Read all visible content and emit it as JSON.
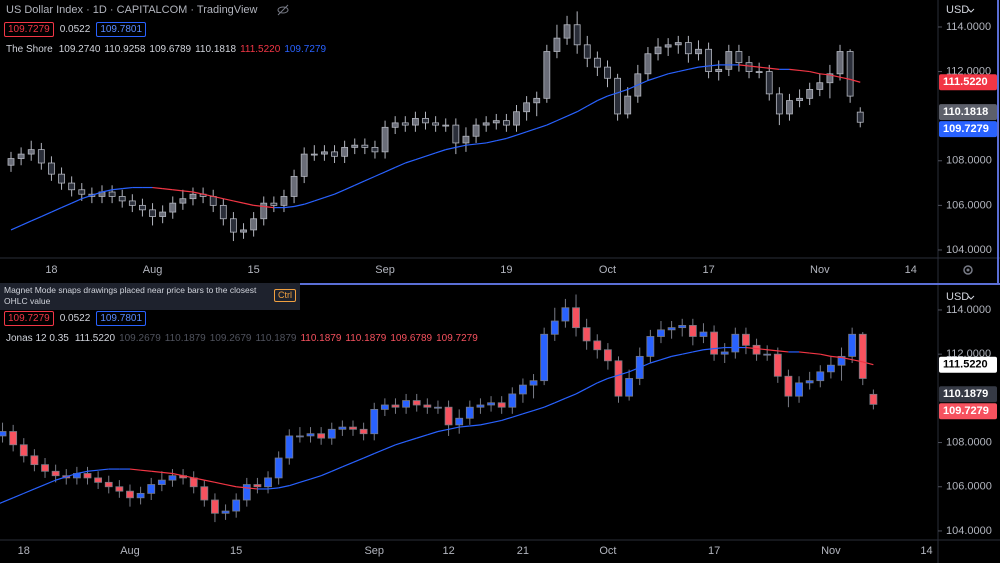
{
  "ui": {
    "symbol_title": "US Dollar Index · 1D · CAPITALCOM · TradingView",
    "quote_top": {
      "bid": "109.7279",
      "spread": "0.0522",
      "ask": "109.7801"
    },
    "legend_top": [
      {
        "text": "109.2740",
        "color": "#d1d4dc"
      },
      {
        "text": "110.9258",
        "color": "#d1d4dc"
      },
      {
        "text": "109.6789",
        "color": "#d1d4dc"
      },
      {
        "text": "110.1818",
        "color": "#d1d4dc"
      },
      {
        "text": "111.5220",
        "color": "#f23645"
      },
      {
        "text": "109.7279",
        "color": "#2962ff"
      }
    ],
    "tooltip": {
      "text": "Magnet Mode snaps drawings placed near price bars to the closest OHLC value",
      "key": "Ctrl"
    },
    "quote_bottom": {
      "bid": "109.7279",
      "spread": "0.0522",
      "ask": "109.7801"
    },
    "legend_bottom": [
      {
        "text": "111.5220",
        "color": "#d1d4dc"
      },
      {
        "text": "109.2679",
        "color": "#50535e"
      },
      {
        "text": "110.1879",
        "color": "#50535e"
      },
      {
        "text": "109.2679",
        "color": "#50535e"
      },
      {
        "text": "110.1879",
        "color": "#50535e"
      },
      {
        "text": "110.1879",
        "color": "#f7525f"
      },
      {
        "text": "110.1879",
        "color": "#f7525f"
      },
      {
        "text": "109.6789",
        "color": "#f7525f"
      },
      {
        "text": "109.7279",
        "color": "#f7525f"
      }
    ],
    "currency_top": "USD",
    "currency_bottom": "USD"
  },
  "chart_data": [
    {
      "type": "candlestick",
      "categories": [
        null,
        null,
        null,
        null,
        "18",
        null,
        null,
        null,
        null,
        null,
        null,
        null,
        null,
        null,
        "Aug",
        null,
        null,
        null,
        null,
        null,
        null,
        null,
        null,
        null,
        "15",
        null,
        null,
        null,
        null,
        null,
        null,
        null,
        null,
        null,
        null,
        null,
        null,
        "Sep",
        null,
        null,
        null,
        null,
        null,
        null,
        null,
        null,
        null,
        null,
        null,
        "19",
        null,
        null,
        null,
        null,
        null,
        null,
        null,
        null,
        null,
        "Oct",
        null,
        null,
        null,
        null,
        null,
        null,
        null,
        null,
        null,
        "17",
        null,
        null,
        null,
        null,
        null,
        null,
        null,
        null,
        null,
        null,
        "Nov",
        null,
        null,
        null,
        null,
        null,
        null,
        null,
        null,
        "14"
      ],
      "open": [
        107.8,
        108.1,
        108.3,
        108.5,
        107.9,
        107.4,
        107.0,
        106.7,
        106.5,
        106.4,
        106.6,
        106.4,
        106.2,
        106.0,
        105.8,
        105.5,
        105.7,
        106.1,
        106.3,
        106.5,
        106.4,
        106.0,
        105.4,
        104.8,
        104.9,
        105.4,
        106.1,
        106.0,
        106.4,
        107.3,
        108.3,
        108.3,
        108.4,
        108.2,
        108.6,
        108.7,
        108.6,
        108.4,
        109.5,
        109.7,
        109.6,
        109.9,
        109.7,
        109.6,
        109.6,
        108.8,
        109.1,
        109.6,
        109.7,
        109.8,
        109.6,
        110.2,
        110.6,
        110.8,
        112.9,
        113.5,
        114.1,
        113.2,
        112.6,
        112.2,
        111.7,
        110.1,
        110.9,
        111.9,
        112.8,
        113.1,
        113.2,
        113.3,
        112.8,
        113.0,
        112.0,
        112.1,
        112.9,
        112.4,
        112.0,
        112.0,
        111.0,
        110.1,
        110.7,
        110.8,
        111.2,
        111.5,
        111.9,
        112.9,
        110.1818,
        null,
        null,
        null,
        null,
        null
      ],
      "high": [
        108.4,
        108.6,
        108.9,
        108.8,
        108.2,
        107.7,
        107.3,
        107.0,
        106.8,
        106.9,
        106.9,
        106.7,
        106.5,
        106.3,
        106.1,
        106.0,
        106.4,
        106.7,
        106.8,
        106.8,
        106.7,
        106.3,
        105.7,
        105.2,
        105.7,
        106.4,
        106.4,
        106.7,
        107.6,
        108.6,
        108.7,
        108.7,
        108.7,
        108.9,
        109.0,
        109.0,
        108.9,
        109.8,
        110.0,
        110.0,
        110.2,
        110.2,
        110.0,
        109.9,
        109.9,
        109.5,
        109.9,
        110.0,
        110.1,
        110.1,
        110.5,
        110.9,
        111.1,
        113.2,
        114.1,
        114.5,
        114.7,
        113.6,
        112.9,
        112.5,
        111.9,
        111.3,
        112.3,
        113.1,
        113.5,
        113.5,
        113.6,
        113.6,
        113.4,
        113.3,
        112.5,
        113.2,
        113.2,
        112.7,
        112.4,
        112.3,
        111.3,
        111.0,
        111.2,
        111.5,
        111.9,
        112.3,
        113.2,
        113.0,
        110.4,
        null,
        null,
        null,
        null,
        null
      ],
      "low": [
        107.5,
        107.8,
        108.0,
        107.6,
        107.1,
        106.7,
        106.4,
        106.2,
        106.1,
        106.1,
        106.1,
        105.9,
        105.7,
        105.5,
        105.1,
        105.2,
        105.4,
        105.8,
        106.0,
        106.1,
        105.7,
        105.1,
        104.4,
        104.5,
        104.6,
        105.1,
        105.7,
        105.7,
        106.1,
        107.0,
        108.0,
        108.0,
        107.9,
        107.9,
        108.3,
        108.3,
        108.1,
        108.1,
        109.2,
        109.3,
        109.3,
        109.4,
        109.3,
        109.3,
        108.3,
        108.4,
        108.8,
        109.3,
        109.4,
        109.3,
        109.3,
        109.8,
        110.0,
        110.6,
        112.6,
        113.2,
        112.8,
        112.2,
        111.8,
        111.3,
        109.8,
        109.9,
        110.6,
        111.6,
        112.5,
        112.7,
        112.8,
        112.4,
        112.5,
        111.7,
        111.6,
        111.8,
        112.0,
        111.7,
        111.7,
        110.7,
        109.6,
        109.8,
        110.4,
        110.5,
        110.9,
        110.8,
        111.6,
        110.6,
        109.5,
        null,
        null,
        null,
        null,
        null
      ],
      "close": [
        108.1,
        108.3,
        108.5,
        107.9,
        107.4,
        107.0,
        106.7,
        106.5,
        106.4,
        106.6,
        106.4,
        106.2,
        106.0,
        105.8,
        105.5,
        105.7,
        106.1,
        106.3,
        106.5,
        106.4,
        106.0,
        105.4,
        104.8,
        104.9,
        105.4,
        106.1,
        106.0,
        106.4,
        107.3,
        108.3,
        108.3,
        108.4,
        108.2,
        108.6,
        108.7,
        108.6,
        108.4,
        109.5,
        109.7,
        109.6,
        109.9,
        109.7,
        109.6,
        109.6,
        108.8,
        109.1,
        109.6,
        109.7,
        109.8,
        109.6,
        110.2,
        110.6,
        110.8,
        112.9,
        113.5,
        114.1,
        113.2,
        112.6,
        112.2,
        111.7,
        110.1,
        110.9,
        111.9,
        112.8,
        113.1,
        113.2,
        113.3,
        112.8,
        113.0,
        112.0,
        112.1,
        112.9,
        112.4,
        112.0,
        112.0,
        111.0,
        110.1,
        110.7,
        110.8,
        111.2,
        111.5,
        111.9,
        112.9,
        110.9,
        109.7279,
        null,
        null,
        null,
        null,
        null
      ],
      "series": [
        {
          "name": "The Shore",
          "color": "#2962ff",
          "down_color": "#f23645",
          "values": [
            104.9,
            105.1,
            105.3,
            105.5,
            105.7,
            105.9,
            106.1,
            106.3,
            106.45,
            106.6,
            106.7,
            106.75,
            106.8,
            106.8,
            106.8,
            106.75,
            106.7,
            106.65,
            106.6,
            106.5,
            106.4,
            106.3,
            106.2,
            106.1,
            106.0,
            105.95,
            105.9,
            105.9,
            105.95,
            106.05,
            106.2,
            106.35,
            106.5,
            106.7,
            106.9,
            107.1,
            107.3,
            107.5,
            107.7,
            107.9,
            108.05,
            108.2,
            108.35,
            108.5,
            108.6,
            108.7,
            108.75,
            108.8,
            108.9,
            109.0,
            109.15,
            109.3,
            109.45,
            109.6,
            109.8,
            110.0,
            110.2,
            110.45,
            110.7,
            110.9,
            111.05,
            111.2,
            111.4,
            111.6,
            111.75,
            111.9,
            112.0,
            112.1,
            112.2,
            112.25,
            112.3,
            112.3,
            112.3,
            112.25,
            112.2,
            112.15,
            112.1,
            112.1,
            112.05,
            112.0,
            111.9,
            111.85,
            111.75,
            111.65,
            111.522,
            null,
            null,
            null,
            null,
            null
          ]
        }
      ],
      "up_color": "#6a6d78",
      "down_color": "#2a2e39",
      "border_color": "#b2b5be",
      "ylim": [
        103.64,
        115.21
      ],
      "yticks": [
        {
          "value": 114,
          "label": "114.0000"
        },
        {
          "value": 112,
          "label": "112.0000"
        },
        {
          "value": 108,
          "label": "108.0000"
        },
        {
          "value": 106,
          "label": "106.0000"
        },
        {
          "value": 104,
          "label": "104.0000"
        }
      ],
      "price_labels": [
        {
          "value": 111.522,
          "label": "111.5220",
          "color": "#f23645",
          "text_color": "#ffffff"
        },
        {
          "value": 110.1818,
          "label": "110.1818",
          "color": "#5d606b",
          "text_color": "#ffffff"
        },
        {
          "value": 109.7279,
          "label": "109.7279",
          "color": "#2962ff",
          "text_color": "#ffffff"
        }
      ],
      "grid": false
    },
    {
      "type": "candlestick",
      "categories": [
        null,
        null,
        null,
        null,
        "18",
        null,
        null,
        null,
        null,
        null,
        null,
        null,
        null,
        null,
        "Aug",
        null,
        null,
        null,
        null,
        null,
        null,
        null,
        null,
        null,
        "15",
        null,
        null,
        null,
        null,
        null,
        null,
        null,
        null,
        null,
        null,
        null,
        null,
        "Sep",
        null,
        null,
        null,
        null,
        null,
        null,
        "12",
        null,
        null,
        null,
        null,
        null,
        null,
        "21",
        null,
        null,
        null,
        null,
        null,
        null,
        null,
        "Oct",
        null,
        null,
        null,
        null,
        null,
        null,
        null,
        null,
        null,
        "17",
        null,
        null,
        null,
        null,
        null,
        null,
        null,
        null,
        null,
        null,
        "Nov",
        null,
        null,
        null,
        null,
        null,
        null,
        null,
        null,
        "14"
      ],
      "series": [
        {
          "name": "Jonas 12 0.35",
          "color": "#2962ff",
          "down_color": "#f23645"
        }
      ],
      "up_color": "#2962ff",
      "down_color": "#f7525f",
      "border_color": "#787b86",
      "ylim": [
        103.59,
        115.13
      ],
      "yticks": [
        {
          "value": 114,
          "label": "114.0000"
        },
        {
          "value": 112,
          "label": "112.0000"
        },
        {
          "value": 108,
          "label": "108.0000"
        },
        {
          "value": 106,
          "label": "106.0000"
        },
        {
          "value": 104,
          "label": "104.0000"
        }
      ],
      "price_labels": [
        {
          "value": 111.522,
          "label": "111.5220",
          "color": "#ffffff",
          "text_color": "#000000"
        },
        {
          "value": 110.1879,
          "label": "110.1879",
          "color": "#363a45",
          "text_color": "#ffffff"
        },
        {
          "value": 109.7279,
          "label": "109.7279",
          "color": "#f7525f",
          "text_color": "#ffffff"
        }
      ],
      "grid": false
    }
  ]
}
